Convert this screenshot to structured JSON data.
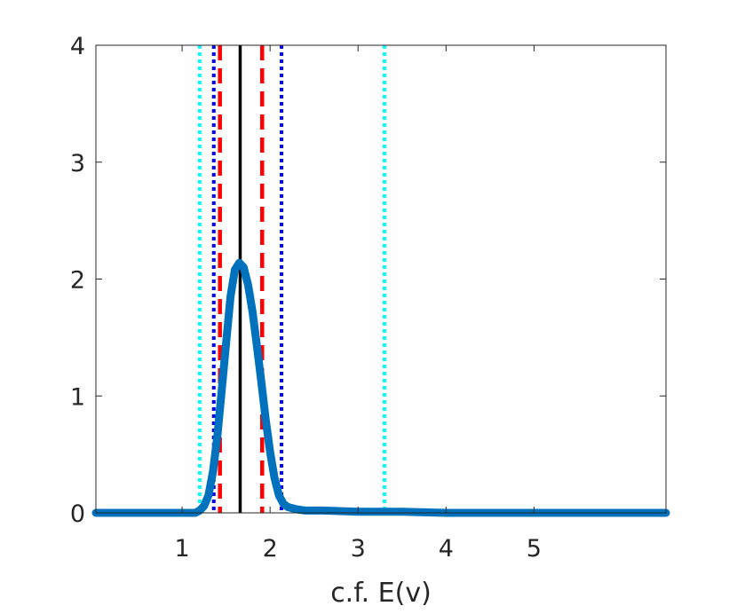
{
  "chart_data": {
    "type": "line",
    "title": "",
    "xlabel": "c.f. E(v)",
    "ylabel": "",
    "xlim": [
      0.02,
      6.5
    ],
    "ylim": [
      0,
      4
    ],
    "xticks": [
      1,
      2,
      3,
      4,
      5
    ],
    "yticks": [
      0,
      1,
      2,
      3,
      4
    ],
    "xtick_labels": [
      "1",
      "2",
      "3",
      "4",
      "5"
    ],
    "ytick_labels": [
      "0",
      "1",
      "2",
      "3",
      "4"
    ],
    "grid": false,
    "series": [
      {
        "color": "#0072bd",
        "style": "solid-thick",
        "x": [
          0.02,
          0.5,
          1.0,
          1.15,
          1.2,
          1.25,
          1.3,
          1.35,
          1.4,
          1.45,
          1.5,
          1.55,
          1.6,
          1.65,
          1.7,
          1.75,
          1.8,
          1.85,
          1.9,
          1.95,
          2.0,
          2.05,
          2.1,
          2.15,
          2.2,
          2.3,
          2.4,
          2.6,
          3.0,
          3.5,
          4.0,
          5.0,
          6.0,
          6.5
        ],
        "y": [
          0.0,
          0.0,
          0.0,
          0.0,
          0.02,
          0.06,
          0.15,
          0.35,
          0.65,
          1.05,
          1.45,
          1.85,
          2.08,
          2.14,
          2.1,
          1.95,
          1.72,
          1.43,
          1.12,
          0.8,
          0.52,
          0.3,
          0.15,
          0.08,
          0.05,
          0.03,
          0.02,
          0.02,
          0.01,
          0.01,
          0.0,
          0.0,
          0.0,
          0.0
        ]
      }
    ],
    "vertical_lines": [
      {
        "x": 1.2,
        "color": "#00ffff",
        "style": "dotted"
      },
      {
        "x": 3.3,
        "color": "#00ffff",
        "style": "dotted"
      },
      {
        "x": 1.36,
        "color": "#0000ff",
        "style": "dotted"
      },
      {
        "x": 2.13,
        "color": "#0000ff",
        "style": "dotted"
      },
      {
        "x": 1.43,
        "color": "#ff0000",
        "style": "dashed"
      },
      {
        "x": 1.91,
        "color": "#ff0000",
        "style": "dashed"
      },
      {
        "x": 1.66,
        "color": "#000000",
        "style": "solid"
      }
    ]
  }
}
